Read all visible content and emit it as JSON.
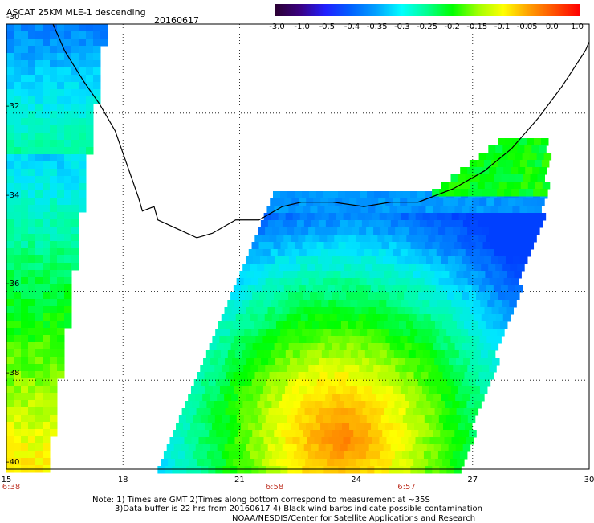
{
  "header": {
    "title": "ASCAT 25KM MLE-1 descending",
    "date": "20160617"
  },
  "colorbar": {
    "ticks": [
      "-3.0",
      "-1.0",
      "-0.5",
      "-0.4",
      "-0.35",
      "-0.3",
      "-0.25",
      "-0.2",
      "-0.15",
      "-0.1",
      "-0.05",
      "0.0",
      "1.0"
    ],
    "colors": [
      "#2a0030",
      "#3a0080",
      "#2020ff",
      "#0060ff",
      "#00a0ff",
      "#00ffff",
      "#00ff90",
      "#00ff00",
      "#a0ff00",
      "#ffff00",
      "#ffa000",
      "#ff5000",
      "#ff0000"
    ]
  },
  "map": {
    "lon_labels": [
      "15",
      "18",
      "21",
      "24",
      "27",
      "30"
    ],
    "lat_labels": [
      "-30",
      "-32",
      "-34",
      "-36",
      "-38",
      "-40"
    ],
    "lon_range": [
      15,
      30
    ],
    "lat_range": [
      -40,
      -30
    ],
    "grid": "dotted",
    "time_labels": [
      {
        "text": "6:38",
        "lon": 15.0
      },
      {
        "text": "6:58",
        "lon": 21.9
      },
      {
        "text": "6:57",
        "lon": 25.3
      }
    ],
    "coast_color": "#000000"
  },
  "notes": {
    "line1": "Note: 1) Times are GMT 2)Times along bottom correspond to measurement at ~35S",
    "line2": "3)Data buffer is 22 hrs from 20160617 4) Black wind barbs indicate possible contamination",
    "line3": "NOAA/NESDIS/Center for Satellite Applications and Research"
  }
}
